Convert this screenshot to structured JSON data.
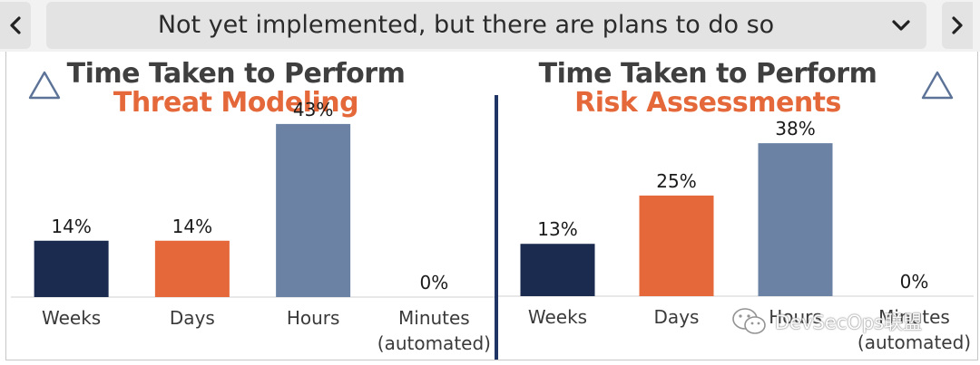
{
  "selector": {
    "value": "Not yet implemented, but there are plans to do so",
    "prev_icon": "chevron-left-icon",
    "next_icon": "chevron-right-icon",
    "dropdown_icon": "chevron-down-icon"
  },
  "colors": {
    "weeks": "#1a2b4f",
    "days": "#e4683a",
    "hours": "#6b82a5",
    "title_main": "#3f3f3f",
    "title_accent": "#e4683a",
    "divider": "#1e3566"
  },
  "chart_data": [
    {
      "type": "bar",
      "title": "Time Taken to Perform",
      "subtitle": "Threat Modeling",
      "categories": [
        "Weeks",
        "Days",
        "Hours",
        "Minutes (automated)"
      ],
      "category_lines": [
        [
          "Weeks"
        ],
        [
          "Days"
        ],
        [
          "Hours"
        ],
        [
          "Minutes",
          "(automated)"
        ]
      ],
      "values": [
        14,
        14,
        43,
        0
      ],
      "value_labels": [
        "14%",
        "14%",
        "43%",
        "0%"
      ],
      "ylim": [
        0,
        45
      ],
      "grid": false
    },
    {
      "type": "bar",
      "title": "Time Taken to Perform",
      "subtitle": "Risk Assessments",
      "categories": [
        "Weeks",
        "Days",
        "Hours",
        "Minutes (automated)"
      ],
      "category_lines": [
        [
          "Weeks"
        ],
        [
          "Days"
        ],
        [
          "Hours"
        ],
        [
          "Minutes",
          "(automated)"
        ]
      ],
      "values": [
        13,
        25,
        38,
        0
      ],
      "value_labels": [
        "13%",
        "25%",
        "38%",
        "0%"
      ],
      "ylim": [
        0,
        45
      ],
      "grid": false
    }
  ],
  "watermark": {
    "text": "DevSecOps联盟",
    "icon": "wechat-icon"
  }
}
